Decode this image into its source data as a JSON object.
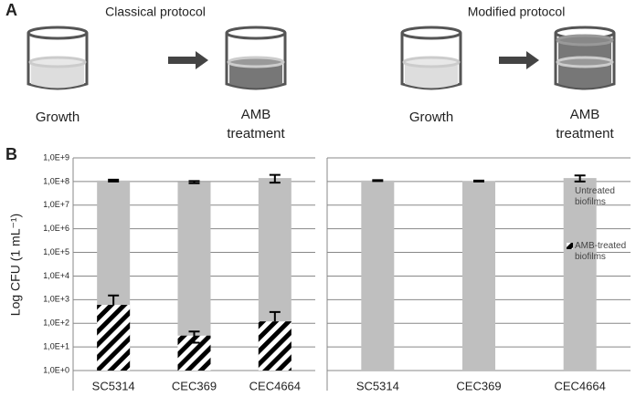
{
  "diagram": {
    "label": "A",
    "protocols": [
      {
        "title": "Classical protocol",
        "steps": [
          "Growth",
          "AMB treatment"
        ]
      },
      {
        "title": "Modified protocol",
        "steps": [
          "Growth",
          "AMB treatment"
        ]
      }
    ]
  },
  "chart_data": {
    "type": "bar",
    "panel_label": "B",
    "y_label": "Log CFU (1 mL⁻¹)",
    "categories": [
      "SC5314",
      "CEC369",
      "CEC4664",
      "SC5314",
      "CEC369",
      "CEC4664"
    ],
    "series": [
      {
        "name": "Untreated biofilms",
        "color": "#bfbfbf",
        "values": [
          110000000.0,
          95000000.0,
          140000000.0,
          110000000.0,
          105000000.0,
          140000000.0
        ],
        "errors": [
          10000000.0,
          10000000.0,
          50000000.0,
          5000000.0,
          5000000.0,
          40000000.0
        ]
      },
      {
        "name": "AMB-treated biofilms",
        "color": "#000000",
        "values": [
          600,
          30,
          120,
          null,
          null,
          null
        ],
        "errors": [
          900,
          15,
          180,
          null,
          null,
          null
        ]
      }
    ],
    "log_scale": true,
    "ylim": [
      1,
      1000000000.0
    ],
    "yticks": [
      {
        "value": 1,
        "label": "1,0E+0"
      },
      {
        "value": 10,
        "label": "1,0E+1"
      },
      {
        "value": 100,
        "label": "1,0E+2"
      },
      {
        "value": 1000,
        "label": "1,0E+3"
      },
      {
        "value": 10000,
        "label": "1,0E+4"
      },
      {
        "value": 100000,
        "label": "1,0E+5"
      },
      {
        "value": 1000000,
        "label": "1,0E+6"
      },
      {
        "value": 10000000,
        "label": "1,0E+7"
      },
      {
        "value": 100000000,
        "label": "1,0E+8"
      },
      {
        "value": 1000000000,
        "label": "1,0E+9"
      }
    ],
    "grid": true,
    "legend": "right"
  }
}
